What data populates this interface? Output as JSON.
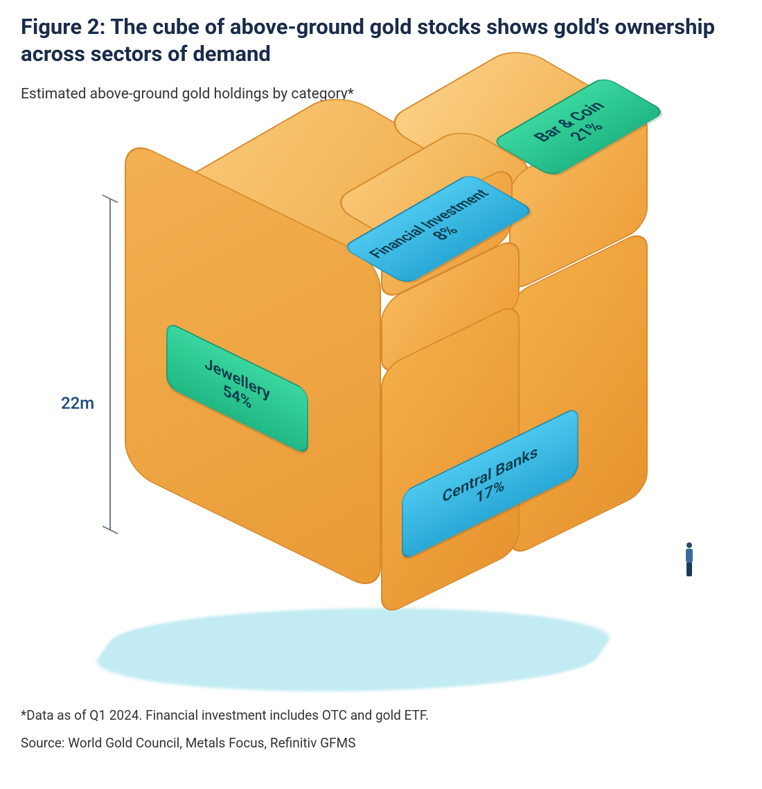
{
  "figure": {
    "type": "infographic",
    "title": "Figure 2: The cube of above-ground gold stocks shows gold's ownership across sectors of demand",
    "subtitle": "Estimated above-ground gold holdings by category*",
    "scale_label": "22m",
    "background_color": "#ffffff",
    "shadow_color": "#a9e3ee",
    "cube_gold_light": "#f9c876",
    "cube_gold_mid": "#f3b153",
    "cube_gold_dark": "#e79430",
    "cube_outline": "#d98a2a",
    "title_color": "#1a2b4a",
    "title_fontsize": 31,
    "subtitle_fontsize": 21,
    "label_fontsize": 22,
    "badge_green_top": "#3ad6a0",
    "badge_green_bottom": "#21b884",
    "badge_blue_top": "#4cc7ee",
    "badge_blue_bottom": "#2aa9d6",
    "badge_text_color": "#0a3a4a",
    "scale_line_color": "#6b7a8a",
    "scale_text_color": "#174a7c",
    "segments": {
      "jewellery": {
        "label": "Jewellery",
        "value": "54%",
        "badge_color": "green",
        "face": "left"
      },
      "bar_coin": {
        "label": "Bar & Coin",
        "value": "21%",
        "badge_color": "green",
        "face": "top"
      },
      "fin_inv": {
        "label": "Financial Investment",
        "value": "8%",
        "badge_color": "blue",
        "face": "top"
      },
      "central": {
        "label": "Central Banks",
        "value": "17%",
        "badge_color": "blue",
        "face": "right"
      }
    },
    "person_scale_marker": true
  },
  "footnote": {
    "line1": "*Data as of Q1 2024. Financial investment includes OTC and gold ETF.",
    "line2": "Source: World Gold Council, Metals Focus, Refinitiv GFMS"
  }
}
